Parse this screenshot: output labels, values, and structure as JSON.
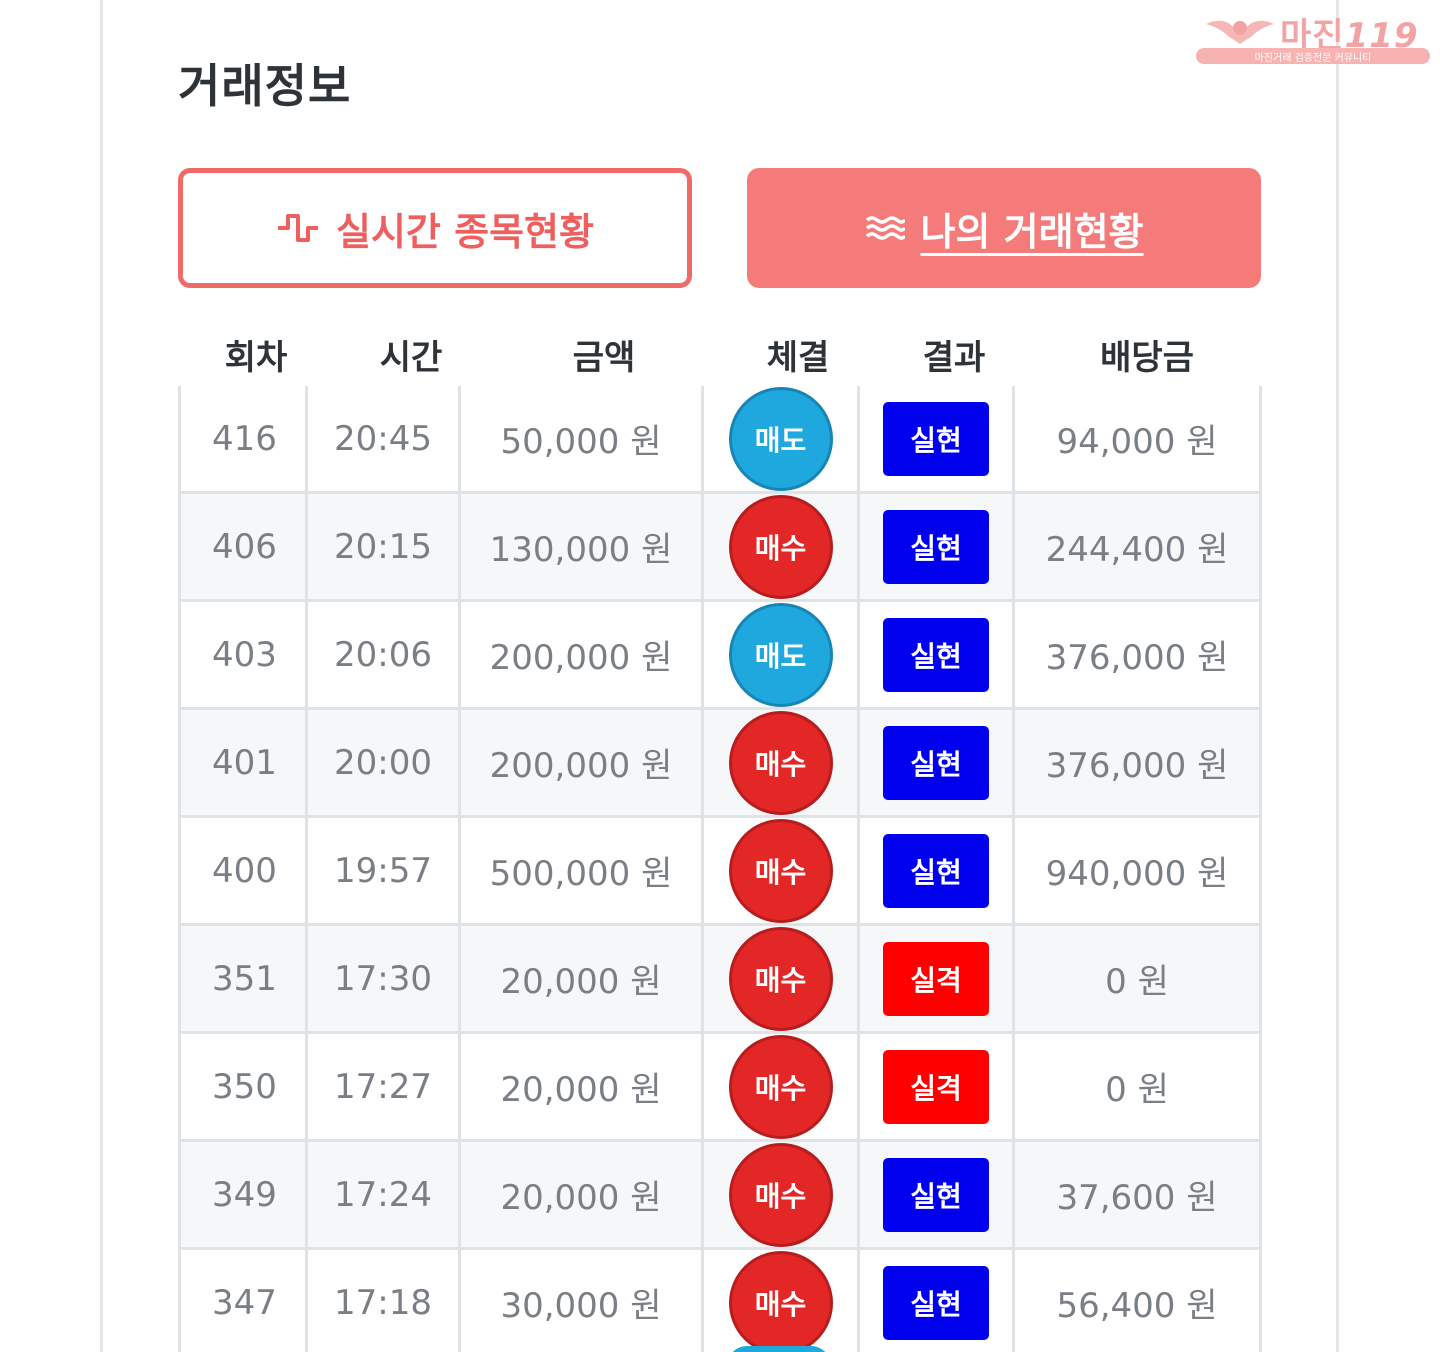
{
  "page_title": "거래정보",
  "watermark": {
    "brand": "마진",
    "suffix": "119",
    "tagline": "마진거래 검증전문 커뮤니티"
  },
  "tabs": [
    {
      "label": "실시간 종목현황",
      "icon": "pulse-icon",
      "active": false
    },
    {
      "label": "나의 거래현황",
      "icon": "waves-icon",
      "active": true
    }
  ],
  "table": {
    "columns": [
      "회차",
      "시간",
      "금액",
      "체결",
      "결과",
      "배당금"
    ],
    "rows": [
      {
        "round": "416",
        "time": "20:45",
        "amount": "50,000 원",
        "order": "매도",
        "result": "실현",
        "payout": "94,000 원"
      },
      {
        "round": "406",
        "time": "20:15",
        "amount": "130,000 원",
        "order": "매수",
        "result": "실현",
        "payout": "244,400 원"
      },
      {
        "round": "403",
        "time": "20:06",
        "amount": "200,000 원",
        "order": "매도",
        "result": "실현",
        "payout": "376,000 원"
      },
      {
        "round": "401",
        "time": "20:00",
        "amount": "200,000 원",
        "order": "매수",
        "result": "실현",
        "payout": "376,000 원"
      },
      {
        "round": "400",
        "time": "19:57",
        "amount": "500,000 원",
        "order": "매수",
        "result": "실현",
        "payout": "940,000 원"
      },
      {
        "round": "351",
        "time": "17:30",
        "amount": "20,000 원",
        "order": "매수",
        "result": "실격",
        "payout": "0 원"
      },
      {
        "round": "350",
        "time": "17:27",
        "amount": "20,000 원",
        "order": "매수",
        "result": "실격",
        "payout": "0 원"
      },
      {
        "round": "349",
        "time": "17:24",
        "amount": "20,000 원",
        "order": "매수",
        "result": "실현",
        "payout": "37,600 원"
      },
      {
        "round": "347",
        "time": "17:18",
        "amount": "30,000 원",
        "order": "매수",
        "result": "실현",
        "payout": "56,400 원"
      }
    ]
  },
  "colors": {
    "accent": "#f57b7b",
    "sell": "#1ea8de",
    "buy": "#e32626",
    "win": "#0000ee",
    "lose": "#ff0000"
  }
}
